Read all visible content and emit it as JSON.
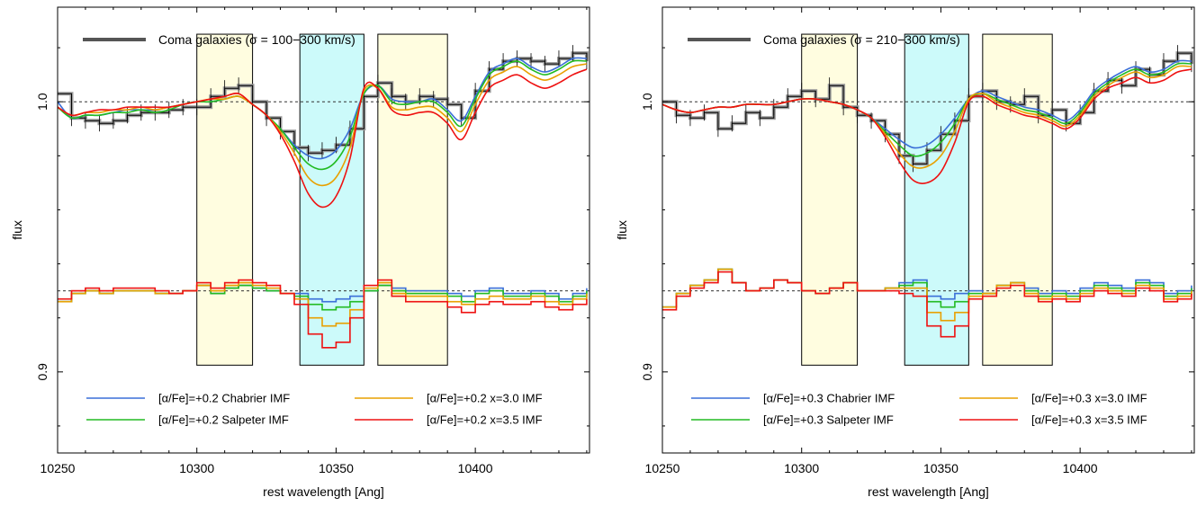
{
  "chart_data": [
    {
      "type": "line",
      "xlabel": "rest wavelength [Ang]",
      "ylabel": "flux",
      "xlim": [
        10250,
        10441
      ],
      "ylim": [
        0.87,
        1.035
      ],
      "xticks": [
        10250,
        10300,
        10350,
        10400
      ],
      "xtick_labels": [
        "10250",
        "10300",
        "10350",
        "10400"
      ],
      "yticks": [
        0.9,
        1.0
      ],
      "ytick_labels": [
        "0.9",
        "1.0"
      ],
      "reference_lines": [
        1.0,
        0.93
      ],
      "bands": [
        {
          "x0": 10300,
          "x1": 10320,
          "y0": 0.9025,
          "y1": 1.025,
          "color": "#fffde0"
        },
        {
          "x0": 10337,
          "x1": 10360,
          "y0": 0.9025,
          "y1": 1.025,
          "color": "#ccfafa"
        },
        {
          "x0": 10365,
          "x1": 10390,
          "y0": 0.9025,
          "y1": 1.025,
          "color": "#fffde0"
        }
      ],
      "observed_label": "Coma galaxies (σ = 100−300 km/s)",
      "observed": {
        "x": [
          10250,
          10255,
          10260,
          10265,
          10270,
          10275,
          10280,
          10285,
          10290,
          10295,
          10300,
          10305,
          10310,
          10315,
          10320,
          10325,
          10330,
          10335,
          10340,
          10345,
          10350,
          10355,
          10360,
          10365,
          10370,
          10375,
          10380,
          10385,
          10390,
          10395,
          10400,
          10405,
          10410,
          10415,
          10420,
          10425,
          10430,
          10435,
          10440
        ],
        "y": [
          1.003,
          0.994,
          0.993,
          0.992,
          0.993,
          0.995,
          0.996,
          0.996,
          0.997,
          0.998,
          0.998,
          1.002,
          1.005,
          1.006,
          1.0,
          0.994,
          0.989,
          0.983,
          0.981,
          0.982,
          0.984,
          0.99,
          1.002,
          1.007,
          1.002,
          1.0,
          1.002,
          1.001,
          0.999,
          0.994,
          1.004,
          1.012,
          1.015,
          1.016,
          1.015,
          1.014,
          1.016,
          1.018,
          1.015
        ]
      },
      "series": [
        {
          "name": "[α/Fe]=+0.2 Chabrier IMF",
          "color": "#3a6fd8",
          "upper": [
            1.0,
            0.994,
            0.995,
            0.995,
            0.996,
            0.997,
            0.997,
            0.997,
            0.998,
            0.999,
            1.0,
            1.0,
            1.001,
            1.002,
            0.999,
            0.995,
            0.99,
            0.984,
            0.98,
            0.979,
            0.982,
            0.99,
            1.003,
            1.006,
            1.001,
            1.0,
            1.0,
            1.001,
            0.997,
            0.993,
            1.002,
            1.011,
            1.014,
            1.016,
            1.013,
            1.011,
            1.013,
            1.016,
            1.016
          ],
          "lower": [
            0.926,
            0.929,
            0.93,
            0.929,
            0.93,
            0.93,
            0.93,
            0.929,
            0.929,
            0.93,
            0.932,
            0.929,
            0.931,
            0.932,
            0.931,
            0.93,
            0.929,
            0.929,
            0.927,
            0.926,
            0.927,
            0.928,
            0.93,
            0.932,
            0.931,
            0.93,
            0.93,
            0.93,
            0.929,
            0.928,
            0.93,
            0.931,
            0.929,
            0.929,
            0.93,
            0.929,
            0.927,
            0.929,
            0.931
          ]
        },
        {
          "name": "[α/Fe]=+0.2 Salpeter IMF",
          "color": "#22bb22",
          "upper": [
            0.998,
            0.994,
            0.995,
            0.995,
            0.996,
            0.996,
            0.997,
            0.996,
            0.997,
            0.999,
            1.0,
            1.0,
            1.001,
            1.002,
            0.999,
            0.995,
            0.99,
            0.983,
            0.977,
            0.975,
            0.978,
            0.987,
            1.003,
            1.006,
            1.0,
            0.999,
            1.0,
            1.0,
            0.996,
            0.991,
            1.001,
            1.01,
            1.013,
            1.015,
            1.012,
            1.01,
            1.012,
            1.015,
            1.015
          ],
          "lower": [
            0.926,
            0.929,
            0.93,
            0.929,
            0.93,
            0.93,
            0.93,
            0.929,
            0.929,
            0.93,
            0.932,
            0.929,
            0.931,
            0.932,
            0.931,
            0.93,
            0.929,
            0.928,
            0.925,
            0.923,
            0.924,
            0.926,
            0.93,
            0.932,
            0.93,
            0.929,
            0.929,
            0.929,
            0.928,
            0.926,
            0.929,
            0.93,
            0.928,
            0.928,
            0.929,
            0.928,
            0.926,
            0.928,
            0.93
          ]
        },
        {
          "name": "[α/Fe]=+0.2 x=3.0 IMF",
          "color": "#e8a000",
          "upper": [
            0.998,
            0.995,
            0.996,
            0.996,
            0.997,
            0.997,
            0.998,
            0.997,
            0.998,
            0.999,
            1.0,
            1.001,
            1.001,
            1.002,
            0.999,
            0.995,
            0.989,
            0.981,
            0.972,
            0.969,
            0.972,
            0.983,
            1.004,
            1.005,
            0.998,
            0.997,
            0.998,
            0.998,
            0.994,
            0.989,
            0.999,
            1.008,
            1.011,
            1.013,
            1.01,
            1.008,
            1.01,
            1.013,
            1.014
          ],
          "lower": [
            0.926,
            0.929,
            0.93,
            0.929,
            0.93,
            0.93,
            0.93,
            0.929,
            0.929,
            0.93,
            0.932,
            0.93,
            0.932,
            0.933,
            0.932,
            0.931,
            0.929,
            0.927,
            0.92,
            0.917,
            0.918,
            0.923,
            0.931,
            0.933,
            0.929,
            0.928,
            0.928,
            0.928,
            0.926,
            0.925,
            0.927,
            0.928,
            0.927,
            0.927,
            0.928,
            0.926,
            0.925,
            0.927,
            0.929
          ]
        },
        {
          "name": "[α/Fe]=+0.2 x=3.5 IMF",
          "color": "#ee1111",
          "upper": [
            0.998,
            0.995,
            0.996,
            0.997,
            0.997,
            0.998,
            0.998,
            0.998,
            0.998,
            0.999,
            1.0,
            1.001,
            1.002,
            1.003,
            0.999,
            0.995,
            0.988,
            0.978,
            0.966,
            0.961,
            0.965,
            0.979,
            1.005,
            1.005,
            0.997,
            0.995,
            0.996,
            0.996,
            0.992,
            0.986,
            0.996,
            1.005,
            1.008,
            1.01,
            1.007,
            1.005,
            1.007,
            1.01,
            1.012
          ],
          "lower": [
            0.927,
            0.93,
            0.931,
            0.93,
            0.931,
            0.931,
            0.931,
            0.93,
            0.929,
            0.93,
            0.933,
            0.931,
            0.933,
            0.934,
            0.933,
            0.932,
            0.929,
            0.925,
            0.914,
            0.909,
            0.911,
            0.92,
            0.932,
            0.934,
            0.928,
            0.926,
            0.926,
            0.926,
            0.924,
            0.922,
            0.925,
            0.926,
            0.925,
            0.925,
            0.926,
            0.924,
            0.923,
            0.925,
            0.927
          ]
        }
      ]
    },
    {
      "type": "line",
      "xlabel": "rest wavelength [Ang]",
      "ylabel": "flux",
      "xlim": [
        10250,
        10441
      ],
      "ylim": [
        0.87,
        1.035
      ],
      "xticks": [
        10250,
        10300,
        10350,
        10400
      ],
      "xtick_labels": [
        "10250",
        "10300",
        "10350",
        "10400"
      ],
      "yticks": [
        0.9,
        1.0
      ],
      "ytick_labels": [
        "0.9",
        "1.0"
      ],
      "reference_lines": [
        1.0,
        0.93
      ],
      "bands": [
        {
          "x0": 10300,
          "x1": 10320,
          "y0": 0.9025,
          "y1": 1.025,
          "color": "#fffde0"
        },
        {
          "x0": 10337,
          "x1": 10360,
          "y0": 0.9025,
          "y1": 1.025,
          "color": "#ccfafa"
        },
        {
          "x0": 10365,
          "x1": 10390,
          "y0": 0.9025,
          "y1": 1.025,
          "color": "#fffde0"
        }
      ],
      "observed_label": "Coma galaxies (σ = 210−300 km/s)",
      "observed": {
        "x": [
          10250,
          10255,
          10260,
          10265,
          10270,
          10275,
          10280,
          10285,
          10290,
          10295,
          10300,
          10305,
          10310,
          10315,
          10320,
          10325,
          10330,
          10335,
          10340,
          10345,
          10350,
          10355,
          10360,
          10365,
          10370,
          10375,
          10380,
          10385,
          10390,
          10395,
          10400,
          10405,
          10410,
          10415,
          10420,
          10425,
          10430,
          10435,
          10440
        ],
        "y": [
          1.0,
          0.995,
          0.994,
          0.996,
          0.99,
          0.992,
          0.996,
          0.994,
          0.998,
          1.002,
          1.004,
          1.001,
          1.006,
          0.998,
          0.995,
          0.993,
          0.988,
          0.98,
          0.977,
          0.982,
          0.988,
          0.993,
          1.002,
          1.004,
          1.0,
          0.999,
          1.002,
          0.995,
          0.997,
          0.992,
          0.996,
          1.004,
          1.008,
          1.006,
          1.012,
          1.01,
          1.015,
          1.018,
          1.014
        ]
      },
      "series": [
        {
          "name": "[α/Fe]=+0.3 Chabrier IMF",
          "color": "#3a6fd8",
          "upper": [
            0.999,
            0.997,
            0.996,
            0.997,
            0.998,
            0.998,
            0.999,
            0.999,
            0.999,
            1.0,
            1.001,
            1.001,
            1.0,
            0.999,
            0.997,
            0.994,
            0.99,
            0.986,
            0.983,
            0.984,
            0.988,
            0.994,
            1.001,
            1.004,
            1.002,
            1.0,
            0.998,
            0.997,
            0.995,
            0.993,
            0.997,
            1.004,
            1.008,
            1.011,
            1.013,
            1.011,
            1.012,
            1.015,
            1.015
          ],
          "lower": [
            0.924,
            0.929,
            0.932,
            0.934,
            0.938,
            0.933,
            0.93,
            0.931,
            0.934,
            0.933,
            0.93,
            0.929,
            0.931,
            0.933,
            0.93,
            0.93,
            0.931,
            0.933,
            0.934,
            0.928,
            0.927,
            0.929,
            0.93,
            0.929,
            0.932,
            0.933,
            0.931,
            0.929,
            0.93,
            0.929,
            0.931,
            0.933,
            0.932,
            0.931,
            0.934,
            0.933,
            0.929,
            0.93,
            0.932
          ]
        },
        {
          "name": "[α/Fe]=+0.3 Salpeter IMF",
          "color": "#22bb22",
          "upper": [
            0.999,
            0.997,
            0.996,
            0.997,
            0.998,
            0.998,
            0.999,
            0.999,
            0.999,
            1.0,
            1.001,
            1.001,
            1.0,
            0.999,
            0.997,
            0.994,
            0.989,
            0.984,
            0.98,
            0.981,
            0.985,
            0.992,
            1.001,
            1.003,
            1.001,
            0.999,
            0.997,
            0.996,
            0.994,
            0.992,
            0.996,
            1.003,
            1.007,
            1.01,
            1.012,
            1.01,
            1.011,
            1.014,
            1.014
          ],
          "lower": [
            0.924,
            0.929,
            0.932,
            0.934,
            0.938,
            0.933,
            0.93,
            0.931,
            0.934,
            0.933,
            0.93,
            0.929,
            0.931,
            0.933,
            0.93,
            0.93,
            0.931,
            0.932,
            0.933,
            0.926,
            0.924,
            0.926,
            0.929,
            0.929,
            0.932,
            0.933,
            0.93,
            0.928,
            0.929,
            0.928,
            0.93,
            0.932,
            0.931,
            0.93,
            0.933,
            0.932,
            0.928,
            0.929,
            0.931
          ]
        },
        {
          "name": "[α/Fe]=+0.3 x=3.0 IMF",
          "color": "#e8a000",
          "upper": [
            0.999,
            0.997,
            0.996,
            0.997,
            0.998,
            0.998,
            0.999,
            0.999,
            0.999,
            1.0,
            1.001,
            1.001,
            1.0,
            0.999,
            0.997,
            0.994,
            0.988,
            0.981,
            0.976,
            0.976,
            0.98,
            0.989,
            1.001,
            1.003,
            1.0,
            0.998,
            0.996,
            0.995,
            0.993,
            0.991,
            0.995,
            1.002,
            1.006,
            1.009,
            1.011,
            1.009,
            1.01,
            1.013,
            1.013
          ],
          "lower": [
            0.924,
            0.929,
            0.932,
            0.934,
            0.938,
            0.933,
            0.93,
            0.931,
            0.934,
            0.933,
            0.93,
            0.929,
            0.931,
            0.933,
            0.93,
            0.93,
            0.931,
            0.931,
            0.931,
            0.922,
            0.919,
            0.922,
            0.928,
            0.929,
            0.932,
            0.933,
            0.929,
            0.927,
            0.928,
            0.927,
            0.929,
            0.931,
            0.93,
            0.929,
            0.932,
            0.931,
            0.927,
            0.928,
            0.93
          ]
        },
        {
          "name": "[α/Fe]=+0.3 x=3.5 IMF",
          "color": "#ee1111",
          "upper": [
            0.999,
            0.997,
            0.996,
            0.997,
            0.998,
            0.998,
            0.999,
            0.999,
            0.999,
            1.0,
            1.001,
            1.001,
            1.0,
            0.999,
            0.997,
            0.994,
            0.987,
            0.978,
            0.971,
            0.97,
            0.974,
            0.985,
            1.0,
            1.002,
            0.999,
            0.997,
            0.995,
            0.994,
            0.992,
            0.99,
            0.994,
            1.001,
            1.005,
            1.007,
            1.009,
            1.007,
            1.008,
            1.011,
            1.012
          ],
          "lower": [
            0.923,
            0.928,
            0.931,
            0.933,
            0.937,
            0.933,
            0.93,
            0.931,
            0.934,
            0.933,
            0.93,
            0.929,
            0.931,
            0.933,
            0.93,
            0.93,
            0.93,
            0.929,
            0.928,
            0.917,
            0.913,
            0.917,
            0.927,
            0.928,
            0.931,
            0.932,
            0.928,
            0.926,
            0.927,
            0.926,
            0.928,
            0.93,
            0.929,
            0.928,
            0.931,
            0.93,
            0.926,
            0.927,
            0.929
          ]
        }
      ]
    }
  ]
}
